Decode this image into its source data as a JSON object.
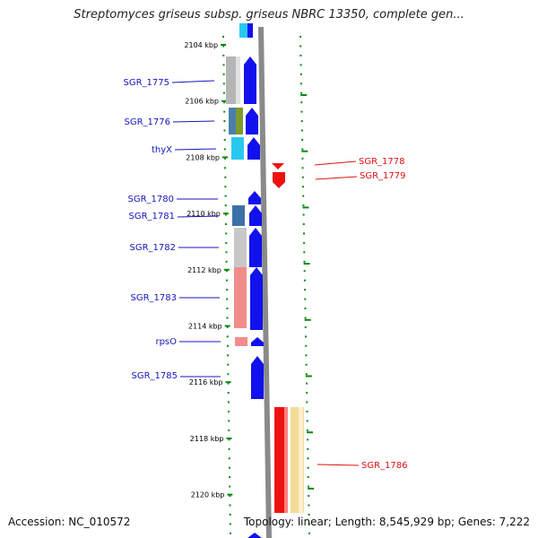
{
  "title": "Streptomyces griseus subsp. griseus NBRC 13350, complete gen...",
  "accession_label": "Accession: NC_010572",
  "summary_label": "Topology: linear; Length: 8,545,929 bp; Genes: 7,222",
  "scale": {
    "ticks": [
      "2104 kbp",
      "2106 kbp",
      "2108 kbp",
      "2110 kbp",
      "2112 kbp",
      "2114 kbp",
      "2116 kbp",
      "2118 kbp",
      "2120 kbp"
    ]
  },
  "genes_left": [
    {
      "name": "SGR_1775"
    },
    {
      "name": "SGR_1776"
    },
    {
      "name": "thyX"
    },
    {
      "name": "SGR_1780"
    },
    {
      "name": "SGR_1781"
    },
    {
      "name": "SGR_1782"
    },
    {
      "name": "SGR_1783"
    },
    {
      "name": "rpsO"
    },
    {
      "name": "SGR_1785"
    }
  ],
  "genes_right": [
    {
      "name": "SGR_1778"
    },
    {
      "name": "SGR_1779"
    },
    {
      "name": "SGR_1786"
    }
  ],
  "colors": {
    "forward_gene": "#1111ee",
    "reverse_gene": "#ee1111",
    "forward_label": "#1515c0",
    "reverse_label": "#dd1111",
    "tick": "#0a8a0a",
    "backbone": "#8a8a8a"
  }
}
